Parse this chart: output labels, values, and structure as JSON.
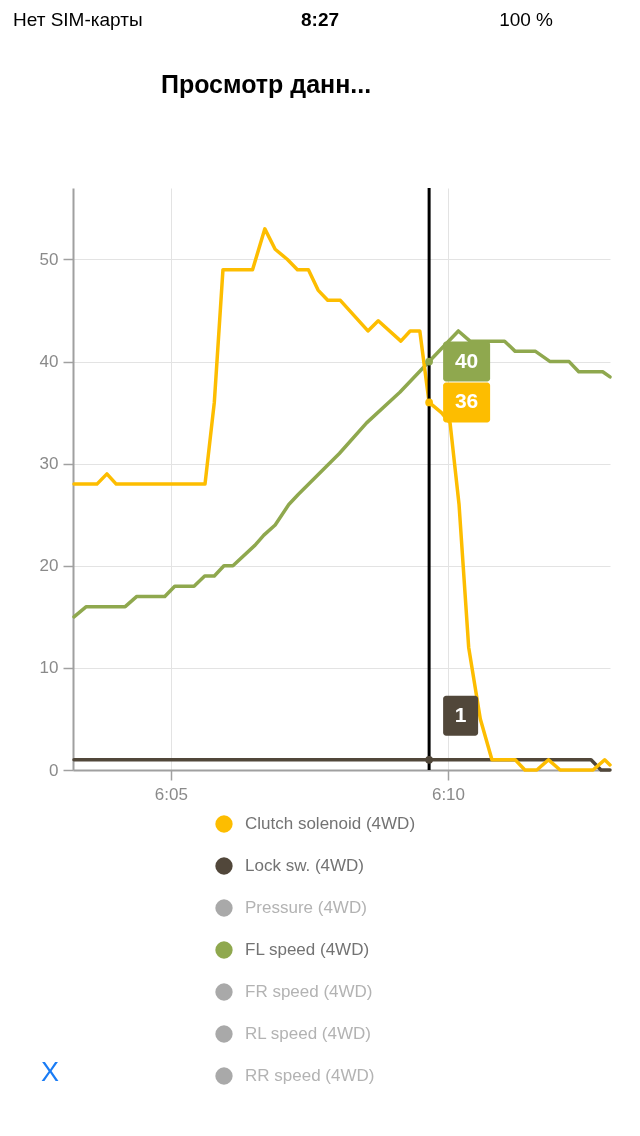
{
  "chart_data": {
    "type": "line",
    "title": "Просмотр данн...",
    "annotations": [
      "Нет SIM-карты",
      "8:27",
      "100 %",
      "X"
    ],
    "xlim": [
      6.0539,
      6.2154
    ],
    "xticks": [
      {
        "value": 6.08333,
        "label": "6:05"
      },
      {
        "value": 6.16667,
        "label": "6:10"
      }
    ],
    "ylim": [
      0,
      57
    ],
    "yticks": [
      0,
      10,
      20,
      30,
      40,
      50
    ],
    "grid": true,
    "legend": "bottom",
    "ref_lines": [
      {
        "axis": "x",
        "value": 6.161,
        "color": "#000000"
      }
    ],
    "series": [
      {
        "name": "Clutch solenoid (4WD)",
        "color": "#fdbd00",
        "x": [
          6.0542,
          6.0611,
          6.0641,
          6.0669,
          6.0936,
          6.0964,
          6.099,
          6.1079,
          6.1116,
          6.1147,
          6.1184,
          6.1214,
          6.1247,
          6.1276,
          6.1305,
          6.1343,
          6.1426,
          6.1457,
          6.1525,
          6.1553,
          6.1582,
          6.161,
          6.1647,
          6.1673,
          6.17,
          6.1729,
          6.1764,
          6.1799,
          6.1869,
          6.1898,
          6.1934,
          6.1969,
          6.2004,
          6.2103,
          6.2138,
          6.2154
        ],
        "values": [
          28,
          28,
          29,
          28,
          28,
          36,
          49,
          49,
          53,
          51,
          50,
          49,
          49,
          47,
          46,
          46,
          43,
          44,
          42,
          43,
          43,
          36,
          35,
          34,
          26,
          12,
          5,
          1,
          1,
          0,
          0,
          1,
          0,
          0,
          1,
          0.5
        ],
        "value_labels": [
          null,
          null,
          null,
          null,
          null,
          null,
          null,
          null,
          null,
          null,
          null,
          null,
          null,
          null,
          null,
          null,
          null,
          null,
          null,
          null,
          null,
          "36",
          null,
          null,
          null,
          null,
          null,
          null,
          null,
          null,
          null,
          null,
          null,
          null,
          null,
          null
        ]
      },
      {
        "name": "Lock sw. (4WD)",
        "color": "#51473a",
        "x": [
          6.0542,
          6.161,
          6.2097,
          6.2127,
          6.2154
        ],
        "values": [
          1,
          1,
          1,
          0,
          0
        ],
        "value_labels": [
          null,
          "1",
          null,
          null,
          null
        ]
      },
      {
        "name": "Pressure (4WD)",
        "color": "#a9a9a9"
      },
      {
        "name": "FL speed (4WD)",
        "color": "#8fa84e",
        "x": [
          6.0542,
          6.0579,
          6.0696,
          6.0731,
          6.0815,
          6.0845,
          6.0903,
          6.0935,
          6.0964,
          6.0993,
          6.102,
          6.1086,
          6.1113,
          6.1147,
          6.1188,
          6.1217,
          6.134,
          6.1422,
          6.1522,
          6.161,
          6.1698,
          6.1733,
          6.1837,
          6.1869,
          6.193,
          6.1974,
          6.2031,
          6.206,
          6.2132,
          6.2154
        ],
        "values": [
          15,
          16,
          16,
          17,
          17,
          18,
          18,
          19,
          19,
          20,
          20,
          22,
          23,
          24,
          26,
          27,
          31,
          34,
          37,
          40,
          43,
          42,
          42,
          41,
          41,
          40,
          40,
          39,
          39,
          38.5
        ],
        "value_labels": [
          null,
          null,
          null,
          null,
          null,
          null,
          null,
          null,
          null,
          null,
          null,
          null,
          null,
          null,
          null,
          null,
          null,
          null,
          null,
          "40",
          null,
          null,
          null,
          null,
          null,
          null,
          null,
          null,
          null,
          null
        ]
      },
      {
        "name": "FR speed (4WD)",
        "color": "#a9a9a9"
      },
      {
        "name": "RL speed (4WD)",
        "color": "#a9a9a9"
      },
      {
        "name": "RR speed (4WD)",
        "color": "#a9a9a9"
      }
    ]
  }
}
